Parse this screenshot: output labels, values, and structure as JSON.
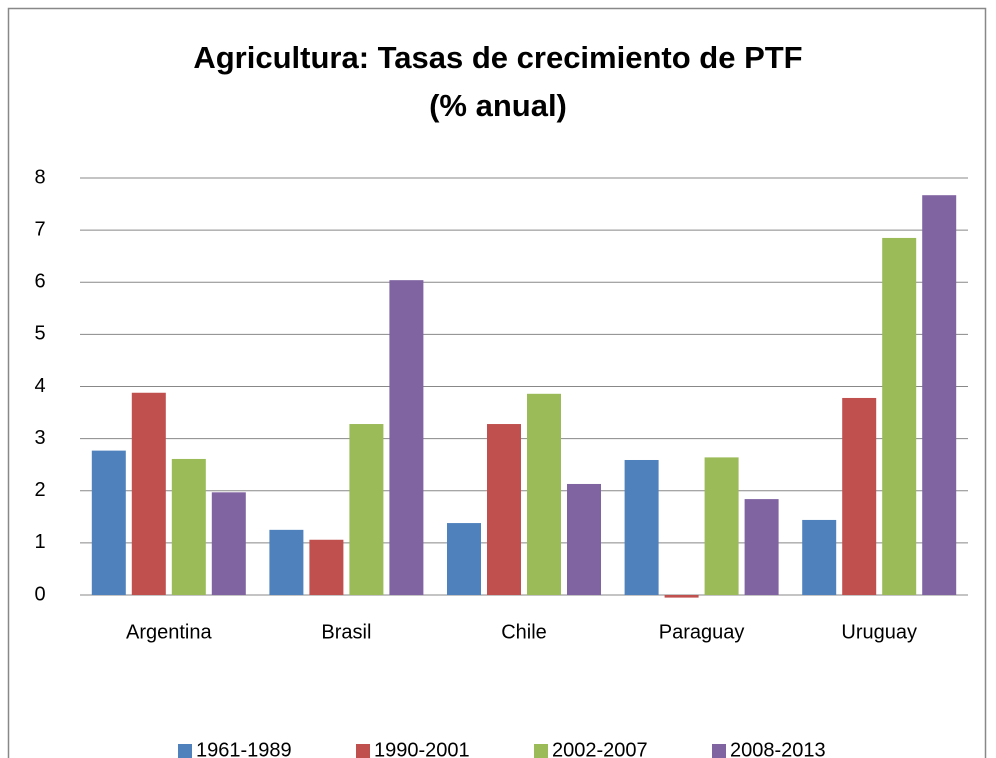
{
  "chart_data": {
    "type": "bar",
    "title": [
      "Agricultura: Tasas de crecimiento de PTF",
      "(% anual)"
    ],
    "categories": [
      "Argentina",
      "Brasil",
      "Chile",
      "Paraguay",
      "Uruguay"
    ],
    "series": [
      {
        "name": "1961-1989",
        "color": "#4f81bd",
        "values": [
          2.77,
          1.25,
          1.38,
          2.59,
          1.44
        ]
      },
      {
        "name": "1990-2001",
        "color": "#c0504d",
        "values": [
          3.88,
          1.06,
          3.28,
          -0.05,
          3.78
        ]
      },
      {
        "name": "2002-2007",
        "color": "#9bbb59",
        "values": [
          2.61,
          3.28,
          3.86,
          2.64,
          6.85
        ]
      },
      {
        "name": "2008-2013",
        "color": "#8064a2",
        "values": [
          1.97,
          6.04,
          2.13,
          1.84,
          7.67
        ]
      }
    ],
    "ylim": [
      0,
      8
    ],
    "yticks": [
      0,
      1,
      2,
      3,
      4,
      5,
      6,
      7,
      8
    ],
    "grid": true,
    "legend": "bottom"
  }
}
